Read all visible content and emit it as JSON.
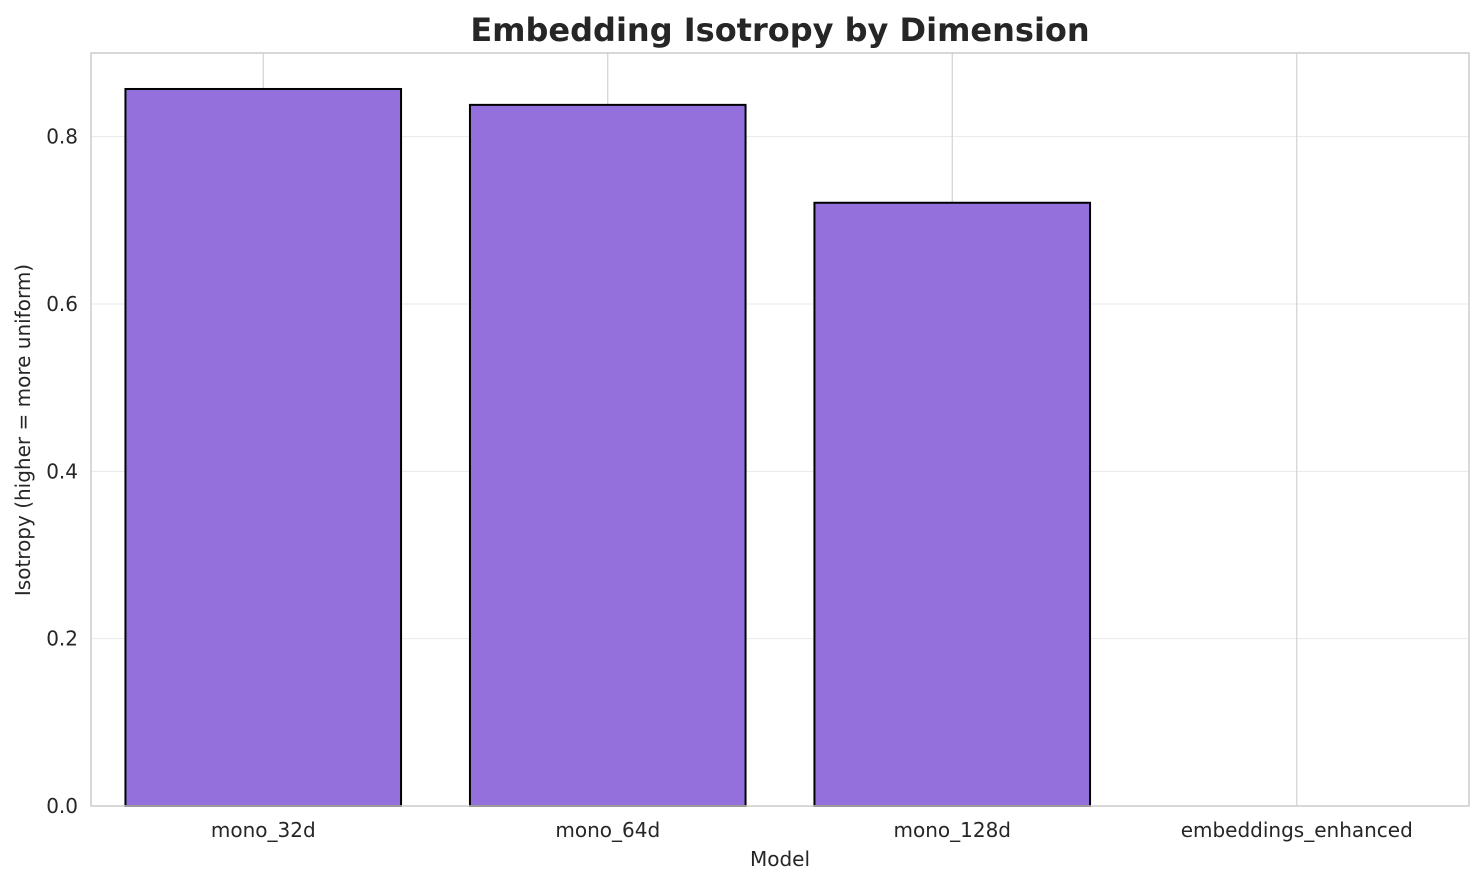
{
  "chart_data": {
    "type": "bar",
    "title": "Embedding Isotropy by Dimension",
    "xlabel": "Model",
    "ylabel": "Isotropy (higher = more uniform)",
    "categories": [
      "mono_32d",
      "mono_64d",
      "mono_128d",
      "embeddings_enhanced"
    ],
    "values": [
      0.857,
      0.838,
      0.721,
      0.0
    ],
    "ylim": [
      0,
      0.9
    ],
    "yticks": [
      0.0,
      0.2,
      0.4,
      0.6,
      0.8
    ],
    "ytick_labels": [
      "0.0",
      "0.2",
      "0.4",
      "0.6",
      "0.8"
    ],
    "grid": true,
    "bar_color": "#9370db",
    "edge_color": "#000000"
  }
}
